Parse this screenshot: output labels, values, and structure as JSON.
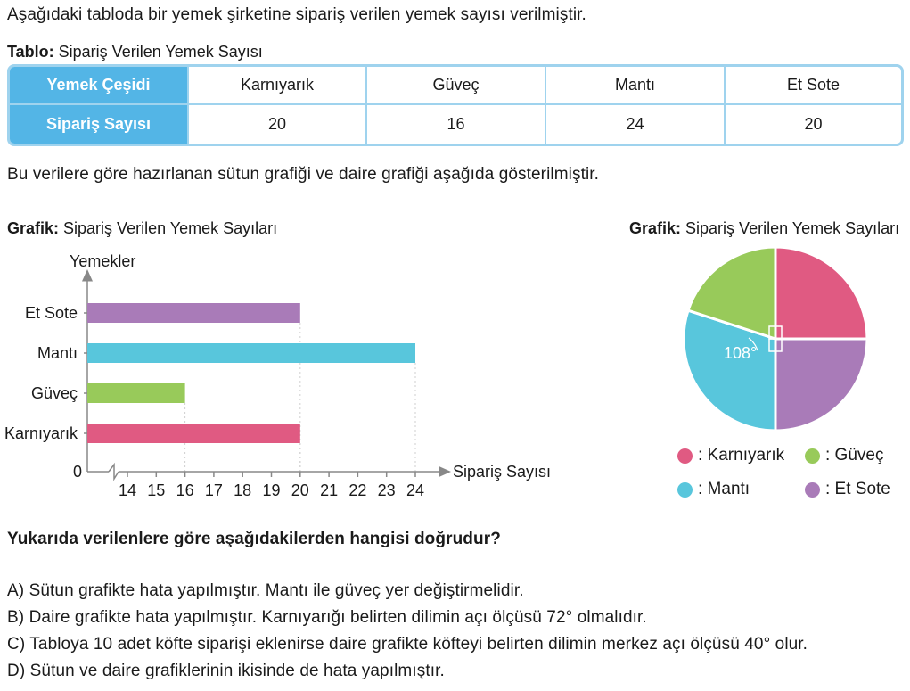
{
  "intro": "Aşağıdaki tabloda bir yemek şirketine sipariş verilen yemek sayısı verilmiştir.",
  "table_caption": {
    "bold": "Tablo:",
    "text": " Sipariş Verilen Yemek Sayısı"
  },
  "table": {
    "row_headers": [
      "Yemek Çeşidi",
      "Sipariş Sayısı"
    ],
    "foods": [
      "Karnıyarık",
      "Güveç",
      "Mantı",
      "Et Sote"
    ],
    "counts": [
      "20",
      "16",
      "24",
      "20"
    ]
  },
  "description": "Bu verilere göre hazırlanan sütun grafiği ve daire grafiği aşağıda gösterilmiştir.",
  "bar_caption": {
    "bold": "Grafik:",
    "text": " Sipariş Verilen Yemek Sayıları"
  },
  "pie_caption": {
    "bold": "Grafik:",
    "text": " Sipariş Verilen Yemek Sayıları"
  },
  "chart_data": [
    {
      "type": "bar",
      "orientation": "horizontal",
      "categories": [
        "Et Sote",
        "Mantı",
        "Güveç",
        "Karnıyarık"
      ],
      "values": [
        20,
        24,
        16,
        20
      ],
      "colors": [
        "#a97bb8",
        "#58c6dc",
        "#98ca5a",
        "#e05a82"
      ],
      "ylabel": "Yemekler",
      "xlabel": "Sipariş Sayısı",
      "origin_label": "0",
      "x_ticks": [
        14,
        15,
        16,
        17,
        18,
        19,
        20,
        21,
        22,
        23,
        24
      ],
      "x_tick_labels": [
        "14",
        "15",
        "16",
        "17",
        "18",
        "19",
        "20",
        "21",
        "22",
        "23",
        "24"
      ],
      "xlim": [
        13,
        24
      ],
      "axis_break": true
    },
    {
      "type": "pie",
      "slices": [
        {
          "name": "Karnıyarık",
          "angle": 90,
          "color": "#e05a82"
        },
        {
          "name": "Et Sote",
          "angle": 90,
          "color": "#a97bb8"
        },
        {
          "name": "Mantı",
          "angle": 108,
          "color": "#58c6dc"
        },
        {
          "name": "Güveç",
          "angle": 72,
          "color": "#98ca5a"
        }
      ],
      "angle_label": "108°",
      "legend": [
        {
          "label": ": Karnıyarık",
          "color": "#e05a82"
        },
        {
          "label": ": Güveç",
          "color": "#98ca5a"
        },
        {
          "label": ": Mantı",
          "color": "#58c6dc"
        },
        {
          "label": ": Et Sote",
          "color": "#a97bb8"
        }
      ]
    }
  ],
  "question": "Yukarıda verilenlere göre aşağıdakilerden hangisi doğrudur?",
  "options": [
    {
      "letter": "A)",
      "text": "Sütun grafikte hata yapılmıştır. Mantı ile güveç yer değiştirmelidir."
    },
    {
      "letter": "B)",
      "text": "Daire grafikte hata yapılmıştır. Karnıyarığı belirten dilimin açı ölçüsü 72° olmalıdır."
    },
    {
      "letter": "C)",
      "text": "Tabloya 10 adet köfte siparişi eklenirse daire grafikte köfteyi belirten dilimin merkez açı ölçüsü 40° olur."
    },
    {
      "letter": "D)",
      "text": "Sütun ve daire grafiklerinin ikisinde de hata yapılmıştır."
    }
  ]
}
